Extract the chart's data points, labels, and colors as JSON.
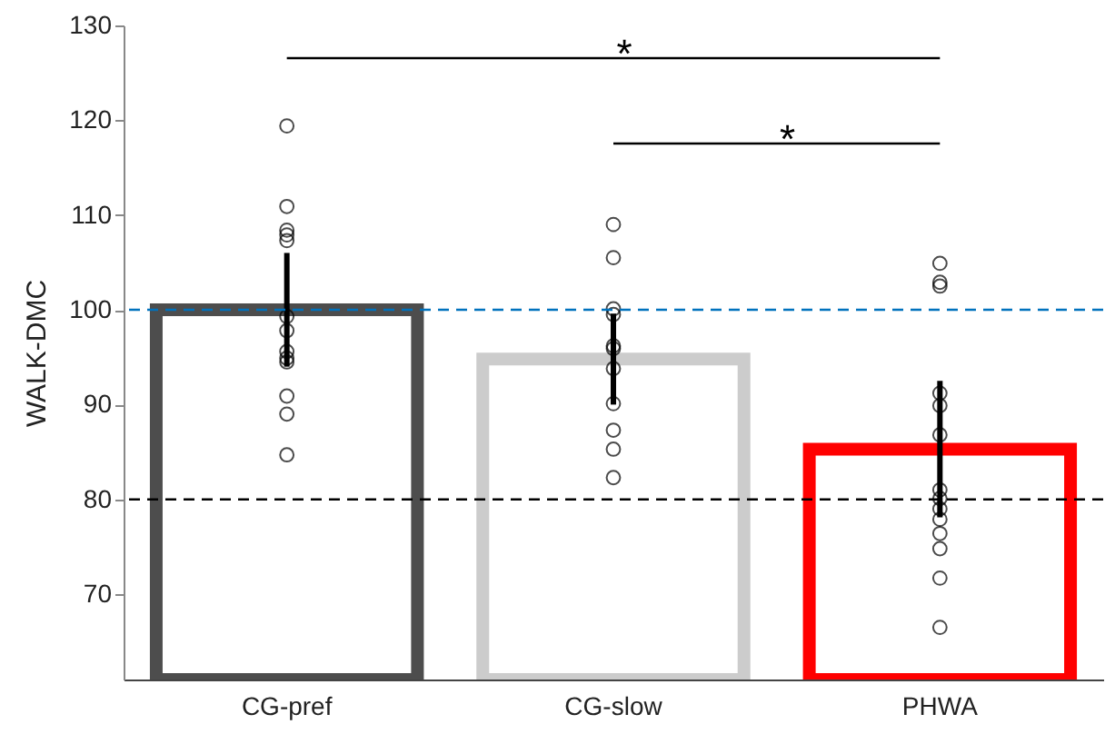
{
  "chart_data": {
    "type": "bar",
    "ylabel": "WALK-DMC",
    "categories": [
      "CG-pref",
      "CG-slow",
      "PHWA"
    ],
    "series": [
      {
        "type": "bar",
        "colors": [
          "#4d4d4d",
          "#cccccc",
          "#ff0000"
        ],
        "values": [
          100,
          94.8,
          85.3
        ],
        "errors": [
          6,
          4.8,
          7.2
        ]
      },
      {
        "type": "scatter",
        "color": "#000000",
        "marker": "circle",
        "x": [
          "CG-pref",
          "CG-pref",
          "CG-pref",
          "CG-pref",
          "CG-pref",
          "CG-pref",
          "CG-pref",
          "CG-pref",
          "CG-pref",
          "CG-pref",
          "CG-pref",
          "CG-pref",
          "CG-pref",
          "CG-slow",
          "CG-slow",
          "CG-slow",
          "CG-slow",
          "CG-slow",
          "CG-slow",
          "CG-slow",
          "CG-slow",
          "CG-slow",
          "CG-slow",
          "CG-slow",
          "PHWA",
          "PHWA",
          "PHWA",
          "PHWA",
          "PHWA",
          "PHWA",
          "PHWA",
          "PHWA",
          "PHWA",
          "PHWA",
          "PHWA",
          "PHWA",
          "PHWA",
          "PHWA"
        ],
        "values": [
          119.4,
          110.9,
          108.4,
          107.9,
          107.3,
          99.3,
          97.8,
          95.6,
          94.9,
          94.5,
          90.9,
          89.0,
          84.7,
          109.0,
          105.5,
          100.1,
          99.5,
          96.2,
          95.9,
          93.8,
          90.1,
          87.3,
          85.3,
          82.3,
          104.9,
          102.9,
          102.5,
          91.2,
          89.9,
          86.8,
          81.0,
          80.1,
          79.0,
          77.9,
          76.4,
          74.8,
          71.7,
          66.5
        ]
      }
    ],
    "ylim": [
      61,
      130
    ],
    "yticks": [
      70,
      80,
      90,
      100,
      110,
      120,
      130
    ],
    "grid": false,
    "ref_lines": [
      {
        "axis": "y",
        "value": 100,
        "color": "#0072bd",
        "line_style": "dashed"
      },
      {
        "axis": "y",
        "value": 80,
        "color": "#000000",
        "line_style": "dashed"
      }
    ],
    "annotations": [
      "*",
      "*"
    ]
  }
}
